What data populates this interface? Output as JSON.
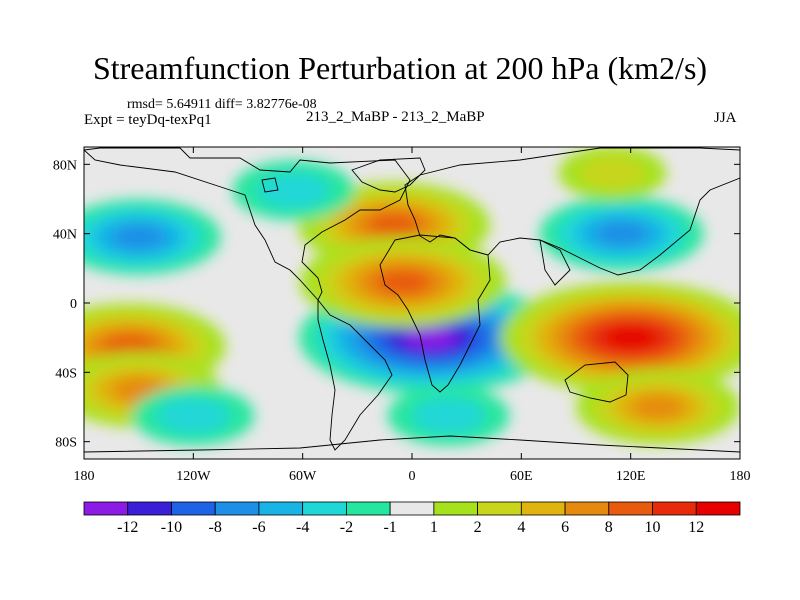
{
  "title": "Streamfunction Perturbation at 200 hPa (km2/s)",
  "stats": "rmsd= 5.64911 diff= 3.82776e-08",
  "expt": "Expt = teyDq-texPq1",
  "subtitle": "213_2_MaBP - 213_2_MaBP",
  "season": "JJA",
  "chart_data": {
    "type": "heatmap",
    "x_ticks": [
      "180",
      "120W",
      "60W",
      "0",
      "60E",
      "120E",
      "180"
    ],
    "y_ticks": [
      "80N",
      "40N",
      "0",
      "40S",
      "80S"
    ],
    "xlim": [
      -180,
      180
    ],
    "ylim": [
      -90,
      90
    ],
    "grid": false,
    "colorbar": {
      "placement": "bottom",
      "levels": [
        "-12",
        "-10",
        "-8",
        "-6",
        "-4",
        "-2",
        "-1",
        "1",
        "2",
        "4",
        "6",
        "8",
        "10",
        "12"
      ],
      "colors": [
        "#8c1be6",
        "#3b1ed8",
        "#1e62e6",
        "#1e8fe6",
        "#19b4e6",
        "#20d7d7",
        "#25e69e",
        "#e8e8e8",
        "#a5e21b",
        "#c8d51a",
        "#e0b40e",
        "#e68a0f",
        "#e85a0d",
        "#e62a0a",
        "#e60000"
      ]
    },
    "features": [
      {
        "lon": 10,
        "lat": -20,
        "value": -13
      },
      {
        "lon": 120,
        "lat": -20,
        "value": 13
      },
      {
        "lon": -10,
        "lat": 45,
        "value": 8
      },
      {
        "lon": -5,
        "lat": 12,
        "value": 9
      },
      {
        "lon": -155,
        "lat": -25,
        "value": 8
      },
      {
        "lon": -150,
        "lat": -50,
        "value": 6
      },
      {
        "lon": 115,
        "lat": 40,
        "value": -6
      },
      {
        "lon": -150,
        "lat": 38,
        "value": -6
      },
      {
        "lon": -65,
        "lat": 65,
        "value": -3
      },
      {
        "lon": 110,
        "lat": 75,
        "value": 2
      },
      {
        "lon": 135,
        "lat": -60,
        "value": 6
      },
      {
        "lon": -120,
        "lat": -65,
        "value": -3
      },
      {
        "lon": 20,
        "lat": -65,
        "value": -3
      }
    ]
  }
}
